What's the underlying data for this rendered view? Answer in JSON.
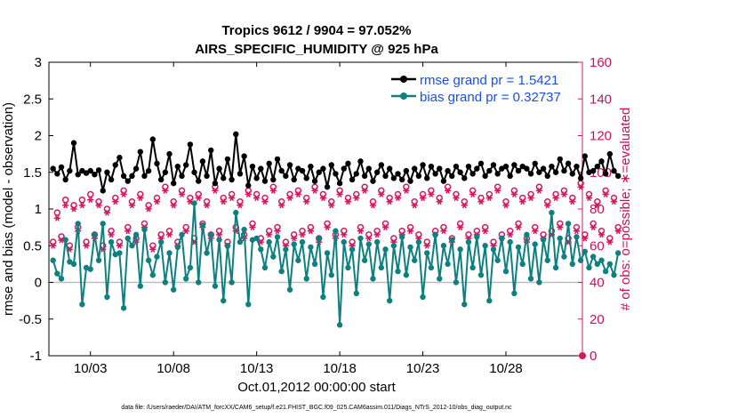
{
  "chart_data": {
    "type": "line",
    "title_line1": "Tropics 9612 / 9904 = 97.052%",
    "title_line2": "AIRS_SPECIFIC_HUMIDITY @ 925 hPa",
    "ylabel_left": "rmse and bias (model - observation)",
    "ylabel_right": "# of obs: o=possible; ∗=evaluated",
    "xlabel": "Oct.01,2012 00:00:00 start",
    "footer": "data file: /Users/raeder/DAI/ATM_forcXX/CAM6_setup/f.e21.FHIST_BGC.f09_025.CAM6assim.011/Diags_NTrS_2012-10/obs_diag_output.nc",
    "ylim_left": [
      -1,
      3
    ],
    "ylim_right": [
      0,
      160
    ],
    "yticks_left": [
      "-1",
      "-0.5",
      "0",
      "0.5",
      "1",
      "1.5",
      "2",
      "2.5",
      "3"
    ],
    "yticks_right": [
      "0",
      "20",
      "40",
      "60",
      "80",
      "100",
      "120",
      "140",
      "160"
    ],
    "xlim": [
      0.5,
      32.6
    ],
    "xticks": [
      {
        "label": "10/03",
        "day": 3
      },
      {
        "label": "10/08",
        "day": 8
      },
      {
        "label": "10/13",
        "day": 13
      },
      {
        "label": "10/18",
        "day": 18
      },
      {
        "label": "10/23",
        "day": 23
      },
      {
        "label": "10/28",
        "day": 28
      }
    ],
    "colors": {
      "rmse": "#000000",
      "bias": "#0e8080",
      "obs": "#d3185f",
      "zero": "#bdbdbd",
      "legend_text": "#1a4fe0"
    },
    "legend": [
      "rmse grand pr = 1.5421",
      "bias grand pr = 0.32737"
    ],
    "x_start": 0.75,
    "x_step": 0.25,
    "series": [
      {
        "name": "rmse grand pr = 1.5421",
        "values": [
          1.55,
          1.48,
          1.57,
          1.4,
          1.52,
          1.9,
          1.47,
          1.52,
          1.49,
          1.52,
          1.47,
          1.53,
          1.25,
          1.5,
          1.4,
          1.6,
          1.7,
          1.45,
          1.38,
          1.45,
          1.55,
          1.78,
          1.45,
          1.52,
          1.95,
          1.62,
          1.4,
          1.5,
          1.75,
          1.35,
          1.58,
          1.45,
          1.6,
          1.88,
          1.5,
          1.38,
          1.65,
          1.45,
          1.8,
          1.35,
          1.55,
          1.42,
          1.68,
          1.4,
          2.02,
          1.48,
          1.72,
          1.32,
          1.58,
          1.42,
          1.55,
          1.38,
          1.62,
          1.4,
          1.68,
          1.52,
          1.45,
          1.6,
          1.4,
          1.55,
          1.52,
          1.42,
          1.58,
          1.38,
          1.5,
          1.55,
          1.3,
          1.6,
          1.48,
          1.35,
          1.55,
          1.62,
          1.4,
          1.48,
          1.65,
          1.45,
          1.55,
          1.38,
          1.5,
          1.6,
          1.45,
          1.55,
          1.42,
          1.48,
          1.4,
          1.52,
          1.38,
          1.55,
          1.45,
          1.6,
          1.42,
          1.58,
          1.48,
          1.55,
          1.38,
          1.52,
          1.45,
          1.58,
          1.5,
          1.42,
          1.58,
          1.48,
          1.55,
          1.62,
          1.45,
          1.52,
          1.6,
          1.48,
          1.55,
          1.58,
          1.45,
          1.6,
          1.52,
          1.58,
          1.55,
          1.48,
          1.62,
          1.5,
          1.55,
          1.45,
          1.58,
          1.5,
          1.68,
          1.52,
          1.62,
          1.48,
          1.58,
          1.42,
          1.72,
          1.5,
          1.52,
          1.58,
          1.65,
          1.48,
          1.75,
          1.52,
          1.45
        ]
      },
      {
        "name": "bias grand pr = 0.32737",
        "values": [
          0.3,
          0.12,
          0.05,
          0.58,
          0.28,
          0.25,
          0.8,
          -0.3,
          0.2,
          0.18,
          0.65,
          0.3,
          0.8,
          -0.2,
          0.55,
          0.38,
          0.4,
          -0.35,
          0.6,
          0.5,
          0.65,
          -0.05,
          0.72,
          0.3,
          0.1,
          0.35,
          0.55,
          0.0,
          0.4,
          -0.1,
          0.48,
          0.65,
          0.05,
          0.2,
          1.08,
          0.0,
          0.78,
          0.4,
          0.65,
          -0.05,
          0.58,
          -0.25,
          0.5,
          0.0,
          0.95,
          0.55,
          0.72,
          -0.3,
          0.58,
          0.6,
          0.45,
          0.2,
          0.55,
          0.35,
          0.62,
          0.15,
          0.45,
          -0.1,
          0.52,
          0.3,
          0.55,
          0.05,
          0.48,
          0.25,
          0.6,
          -0.2,
          0.4,
          0.1,
          0.7,
          -0.58,
          0.55,
          0.2,
          0.45,
          -0.15,
          0.6,
          0.3,
          0.52,
          0.05,
          0.55,
          0.2,
          0.45,
          -0.25,
          0.5,
          0.15,
          0.62,
          0.1,
          0.48,
          0.3,
          0.55,
          -0.2,
          0.4,
          0.2,
          0.65,
          0.05,
          0.5,
          0.25,
          0.58,
          0.0,
          0.45,
          -0.3,
          0.55,
          0.2,
          0.62,
          0.1,
          0.5,
          -0.25,
          0.45,
          0.3,
          0.6,
          0.15,
          0.55,
          -0.15,
          0.48,
          0.25,
          0.65,
          0.05,
          0.52,
          0.0,
          0.58,
          0.3,
          0.95,
          0.2,
          0.6,
          0.35,
          0.8,
          0.25,
          0.62,
          0.3,
          0.42,
          0.2,
          0.35,
          0.25,
          0.3,
          0.15,
          0.25,
          0.1,
          0.4
        ]
      },
      {
        "name": "obs possible",
        "values": [
          62,
          78,
          65,
          85,
          60,
          82,
          70,
          85,
          62,
          88,
          66,
          84,
          60,
          80,
          68,
          86,
          62,
          90,
          70,
          84,
          64,
          88,
          72,
          82,
          60,
          86,
          66,
          92,
          68,
          84,
          62,
          90,
          70,
          86,
          64,
          88,
          72,
          84,
          66,
          92,
          68,
          86,
          62,
          88,
          70,
          84,
          66,
          90,
          72,
          88,
          64,
          86,
          68,
          92,
          70,
          84,
          62,
          88,
          66,
          90,
          68,
          86,
          70,
          92,
          64,
          88,
          72,
          84,
          66,
          90,
          68,
          86,
          62,
          88,
          70,
          92,
          66,
          84,
          68,
          90,
          72,
          86,
          64,
          88,
          68,
          92,
          70,
          84,
          66,
          88,
          62,
          90,
          68,
          86,
          70,
          92,
          64,
          88,
          72,
          84,
          66,
          90,
          68,
          86,
          70,
          88,
          62,
          92,
          66,
          84,
          68,
          90,
          72,
          86,
          64,
          88,
          70,
          92,
          66,
          84,
          68,
          88,
          72,
          90,
          64,
          86,
          70,
          94,
          66,
          88,
          72,
          84,
          68,
          90,
          64,
          86,
          70
        ]
      },
      {
        "name": "obs evaluated",
        "values": [
          60,
          75,
          63,
          82,
          58,
          80,
          68,
          82,
          60,
          85,
          64,
          82,
          58,
          78,
          66,
          84,
          60,
          88,
          68,
          82,
          62,
          86,
          70,
          80,
          58,
          84,
          64,
          90,
          66,
          82,
          60,
          88,
          68,
          84,
          62,
          86,
          70,
          82,
          64,
          90,
          66,
          84,
          60,
          86,
          68,
          82,
          64,
          88,
          70,
          86,
          62,
          84,
          66,
          90,
          68,
          82,
          60,
          86,
          64,
          88,
          66,
          84,
          68,
          90,
          62,
          86,
          70,
          82,
          64,
          88,
          66,
          84,
          60,
          86,
          68,
          90,
          64,
          82,
          66,
          88,
          70,
          84,
          62,
          86,
          66,
          90,
          68,
          82,
          64,
          86,
          60,
          88,
          66,
          84,
          68,
          90,
          62,
          86,
          70,
          82,
          64,
          88,
          66,
          84,
          68,
          86,
          60,
          90,
          64,
          82,
          66,
          88,
          70,
          84,
          62,
          86,
          68,
          90,
          64,
          82,
          66,
          86,
          70,
          88,
          62,
          84,
          68,
          92,
          64,
          86,
          70,
          82,
          66,
          88,
          62,
          84,
          68
        ]
      }
    ]
  }
}
